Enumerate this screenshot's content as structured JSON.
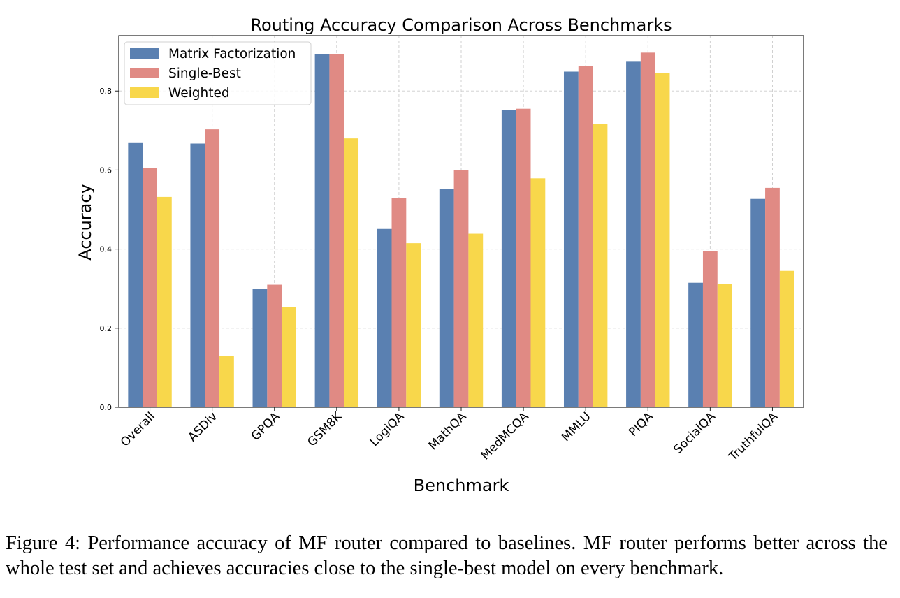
{
  "chart_data": {
    "type": "bar",
    "title": "Routing Accuracy Comparison Across Benchmarks",
    "xlabel": "Benchmark",
    "ylabel": "Accuracy",
    "categories": [
      "Overall",
      "ASDiv",
      "GPQA",
      "GSM8K",
      "LogiQA",
      "MathQA",
      "MedMCQA",
      "MMLU",
      "PIQA",
      "SocialQA",
      "TruthfulQA"
    ],
    "series": [
      {
        "name": "Matrix Factorization",
        "color": "#5a80b1",
        "values": [
          0.67,
          0.667,
          0.3,
          0.894,
          0.451,
          0.553,
          0.751,
          0.849,
          0.874,
          0.315,
          0.527
        ]
      },
      {
        "name": "Single-Best",
        "color": "#e08a84",
        "values": [
          0.606,
          0.703,
          0.31,
          0.894,
          0.53,
          0.599,
          0.755,
          0.863,
          0.897,
          0.395,
          0.555
        ]
      },
      {
        "name": "Weighted",
        "color": "#f8d74b",
        "values": [
          0.532,
          0.129,
          0.253,
          0.68,
          0.415,
          0.439,
          0.579,
          0.717,
          0.845,
          0.312,
          0.345
        ]
      }
    ],
    "yticks": [
      "0.0",
      "0.2",
      "0.4",
      "0.6",
      "0.8"
    ],
    "ylim": [
      0,
      0.94
    ],
    "grid": true,
    "legend": "top-left"
  },
  "caption": "Figure 4: Performance accuracy of MF router compared to baselines. MF router performs better across the whole test set and achieves accuracies close to the single-best model on every benchmark."
}
